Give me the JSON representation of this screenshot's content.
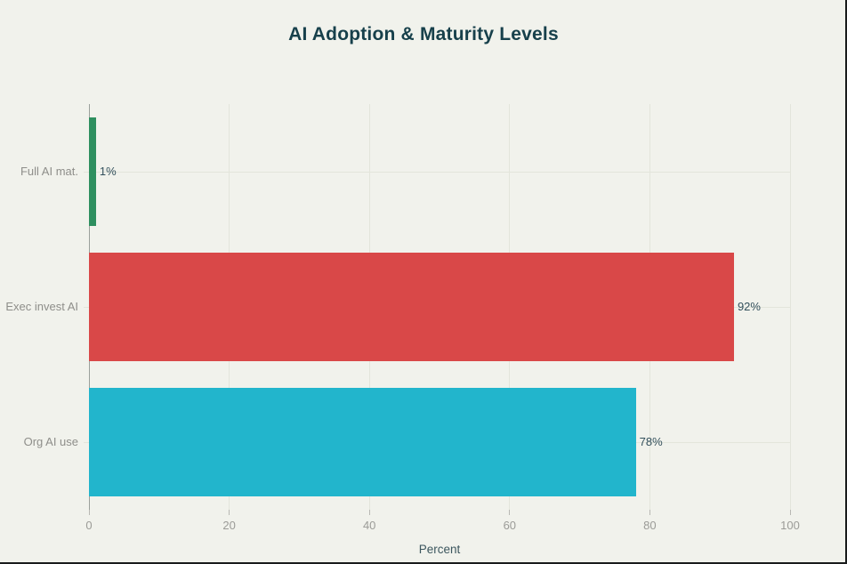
{
  "colors": {
    "background": "#f1f2ec",
    "edge": "#191b1c",
    "title": "#17404b",
    "grid": "#e3e5db",
    "zeroline": "#9aa09b",
    "tick": "#b8b8b3",
    "tick_label": "#9b9b97",
    "category_label": "#8e8e8a",
    "value_label": "#33505c",
    "axis_title": "#3c565e",
    "bar_green": "#2e8f5f",
    "bar_red": "#d94848",
    "bar_teal": "#22b5cc"
  },
  "chart_data": {
    "type": "bar",
    "orientation": "horizontal",
    "title": "AI Adoption & Maturity Levels",
    "xlabel": "Percent",
    "ylabel": "",
    "xlim": [
      0,
      100
    ],
    "xticks": [
      0,
      20,
      40,
      60,
      80,
      100
    ],
    "grid": true,
    "legend": "none",
    "categories": [
      "Full AI mat.",
      "Exec invest AI",
      "Org AI use"
    ],
    "values": [
      1,
      92,
      78
    ],
    "value_labels": [
      "1%",
      "92%",
      "78%"
    ],
    "bar_colors": [
      "#2e8f5f",
      "#d94848",
      "#22b5cc"
    ]
  }
}
